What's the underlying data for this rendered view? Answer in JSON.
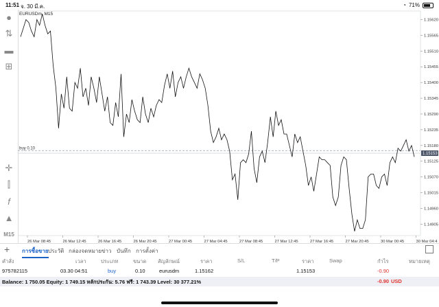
{
  "status": {
    "time": "11:51",
    "date": "จ. 30 มี.ค.",
    "battery": "71%"
  },
  "chart_title": "EURUSDm, M15",
  "chart_data": {
    "type": "line",
    "symbol": "EURUSDm",
    "timeframe": "M15",
    "ylim": [
      1.14865,
      1.1565
    ],
    "y_ticks": [
      "1.15620",
      "1.15565",
      "1.15510",
      "1.15455",
      "1.15400",
      "1.15345",
      "1.15290",
      "1.15235",
      "1.15180",
      "1.15125",
      "1.15070",
      "1.15015",
      "1.14960",
      "1.14905"
    ],
    "x_ticks": [
      "26 Mar 08:45",
      "26 Mar 12:45",
      "26 Mar 16:45",
      "26 Mar 20:45",
      "27 Mar 00:45",
      "27 Mar 04:45",
      "27 Mar 08:45",
      "27 Mar 12:45",
      "27 Mar 16:45",
      "27 Mar 20:45",
      "30 Mar 00:45",
      "30 Mar 04:4"
    ],
    "series": [
      {
        "values": [
          1.1556,
          1.1559,
          1.1562,
          1.1561,
          1.1558,
          1.1556,
          1.1562,
          1.156,
          1.1564,
          1.156,
          1.1557,
          1.1558,
          1.1546,
          1.1538,
          1.1524,
          1.1536,
          1.1531,
          1.1542,
          1.1531,
          1.153,
          1.154,
          1.1538,
          1.1545,
          1.1535,
          1.1538,
          1.1532,
          1.1542,
          1.1538,
          1.1533,
          1.1542,
          1.1536,
          1.153,
          1.1535,
          1.1526,
          1.1525,
          1.1533,
          1.1528,
          1.1543,
          1.1521,
          1.1529,
          1.1526,
          1.1534,
          1.153,
          1.1527,
          1.1526,
          1.1535,
          1.1529,
          1.1526,
          1.1531,
          1.1528,
          1.1532,
          1.1534,
          1.1533,
          1.1539,
          1.1543,
          1.1538,
          1.1544,
          1.1535,
          1.154,
          1.1542,
          1.1538,
          1.1542,
          1.1545,
          1.1542,
          1.154,
          1.1538,
          1.1543,
          1.1541,
          1.1538,
          1.1532,
          1.1523,
          1.1519,
          1.1521,
          1.1524,
          1.152,
          1.1522,
          1.152,
          1.1516,
          1.1506,
          1.1508,
          1.1499,
          1.1512,
          1.1513,
          1.1512,
          1.1515,
          1.1523,
          1.151,
          1.1505,
          1.1514,
          1.1516,
          1.1512,
          1.1519,
          1.1528,
          1.1521,
          1.153,
          1.1525,
          1.1527,
          1.1522,
          1.1522,
          1.1518,
          1.1514,
          1.1522,
          1.1519,
          1.1521,
          1.1516,
          1.1511,
          1.1504,
          1.1507,
          1.1502,
          1.1508,
          1.1514,
          1.1513,
          1.1513,
          1.1512,
          1.1511,
          1.15,
          1.1497,
          1.15,
          1.1511,
          1.1514,
          1.1513,
          1.1503,
          1.1494,
          1.1488,
          1.1492,
          1.1489,
          1.1489,
          1.1492,
          1.1507,
          1.1508,
          1.1508,
          1.1504,
          1.1503,
          1.1507,
          1.1508,
          1.1504,
          1.1512,
          1.1514,
          1.1512,
          1.1517,
          1.1516,
          1.1518,
          1.152,
          1.1516,
          1.1518,
          1.1514
        ]
      }
    ],
    "buy_line": {
      "label": "buy 0.10",
      "price": 1.15162
    },
    "bid_label": "1.15153",
    "bid_price": 1.15153
  },
  "tabs": [
    "การซื้อขาย",
    "ประวัติ",
    "กล่องจดหมาย",
    "ข่าว",
    "บันทึก",
    "การตั้งค่า"
  ],
  "table": {
    "headers": [
      "คำสั่ง",
      "เวลา",
      "ประเภท",
      "ขนาด",
      "สัญลักษณ์",
      "ราคา",
      "S/L",
      "T/P",
      "ราคา",
      "Swap",
      "กำไร",
      "หมายเหตุ"
    ],
    "row": {
      "order": "975782115",
      "time": "03.30 04:51",
      "type": "buy",
      "size": "0.10",
      "symbol": "eurusdm",
      "price": "1.15162",
      "current": "1.15153",
      "profit": "-0.90"
    }
  },
  "balance": {
    "text": "Balance: 1 750.05 Equity: 1 749.15 หลักประกัน: 5.76 ฟรี: 1 743.39 Level: 30 377.21%",
    "profit": "-0.90",
    "currency": "USD"
  },
  "side_labels": {
    "timeframe": "M15"
  },
  "colors": {
    "accent": "#1a62c6",
    "loss": "#e0332f",
    "buy_line": "#9aa0a8"
  }
}
